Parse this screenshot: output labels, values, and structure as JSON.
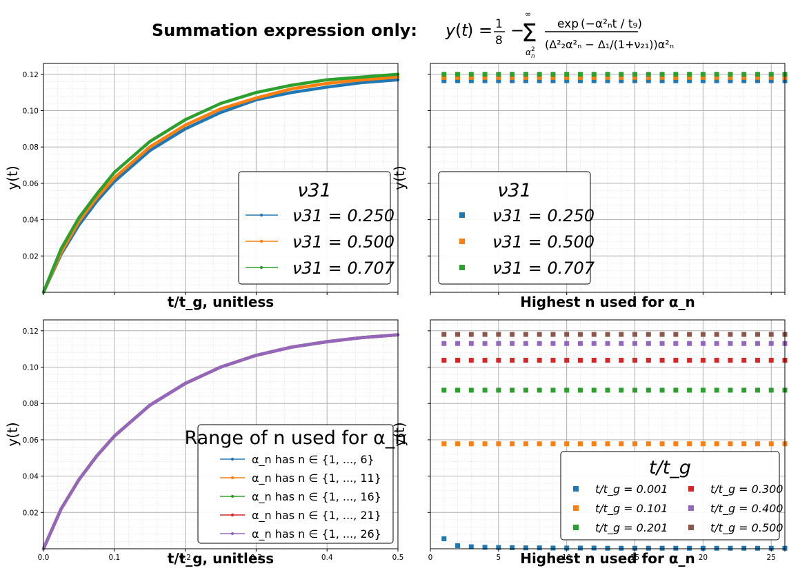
{
  "figure": {
    "title_prefix": "Summation expression only:",
    "formula": "y(t) = 1/8 − Σ exp(−α²ₙt / t_g) / [α²ₙ(Δ²₂α²ₙ − Δ₁/(1+ν₂₁))α²ₙ]"
  },
  "colors": {
    "blue": "#1f77b4",
    "orange": "#ff7f0e",
    "green": "#2ca02c",
    "red": "#d62728",
    "purple": "#9467bd",
    "brown": "#8c564b"
  },
  "chart_data": [
    {
      "id": "top-left",
      "type": "line",
      "xlabel": "t/t_g, unitless",
      "ylabel": "y(t)",
      "xlim": [
        0,
        0.5
      ],
      "ylim": [
        0,
        0.126
      ],
      "show_x_ticklabels": false,
      "yticks": [
        "0.02",
        "0.04",
        "0.06",
        "0.08",
        "0.10",
        "0.12"
      ],
      "legend": {
        "title": "ν31",
        "position": "lower-right"
      },
      "x": [
        0,
        0.025,
        0.05,
        0.075,
        0.1,
        0.15,
        0.2,
        0.25,
        0.3,
        0.35,
        0.4,
        0.45,
        0.5
      ],
      "series": [
        {
          "name": "ν31 = 0.250",
          "color": "blue",
          "values": [
            0,
            0.021,
            0.037,
            0.05,
            0.061,
            0.078,
            0.09,
            0.099,
            0.106,
            0.11,
            0.113,
            0.1155,
            0.117
          ]
        },
        {
          "name": "ν31 = 0.500",
          "color": "orange",
          "values": [
            0,
            0.022,
            0.039,
            0.052,
            0.063,
            0.08,
            0.092,
            0.101,
            0.107,
            0.112,
            0.115,
            0.117,
            0.1185
          ]
        },
        {
          "name": "ν31 = 0.707",
          "color": "green",
          "values": [
            0,
            0.024,
            0.041,
            0.054,
            0.066,
            0.083,
            0.095,
            0.104,
            0.11,
            0.114,
            0.117,
            0.1185,
            0.12
          ]
        }
      ]
    },
    {
      "id": "top-right",
      "type": "scatter",
      "xlabel": "Highest n used for α_n",
      "ylabel": "y(t)",
      "xlim": [
        0,
        26
      ],
      "ylim": [
        0,
        0.126
      ],
      "show_x_ticklabels": false,
      "show_y_ticklabels": false,
      "legend": {
        "title": "ν31",
        "position": "lower-left"
      },
      "x": [
        1,
        2,
        3,
        4,
        5,
        6,
        7,
        8,
        9,
        10,
        11,
        12,
        13,
        14,
        15,
        16,
        17,
        18,
        19,
        20,
        21,
        22,
        23,
        24,
        25,
        26
      ],
      "series": [
        {
          "name": "ν31 = 0.250",
          "color": "blue",
          "constant": 0.1165
        },
        {
          "name": "ν31 = 0.500",
          "color": "orange",
          "constant": 0.1183
        },
        {
          "name": "ν31 = 0.707",
          "color": "green",
          "constant": 0.12
        }
      ]
    },
    {
      "id": "bottom-left",
      "type": "line",
      "xlabel": "t/t_g, unitless",
      "ylabel": "y(t)",
      "xlim": [
        0,
        0.5
      ],
      "ylim": [
        0,
        0.126
      ],
      "xticks": [
        "0.0",
        "0.1",
        "0.2",
        "0.3",
        "0.4",
        "0.5"
      ],
      "yticks": [
        "0.02",
        "0.04",
        "0.06",
        "0.08",
        "0.10",
        "0.12"
      ],
      "legend": {
        "title": "Range of n used for α_n",
        "position": "lower-right"
      },
      "x": [
        0,
        0.025,
        0.05,
        0.075,
        0.1,
        0.15,
        0.2,
        0.25,
        0.3,
        0.35,
        0.4,
        0.45,
        0.5
      ],
      "series": [
        {
          "name": "α_n has n ∈ {1, ..., 6}",
          "color": "blue",
          "values": [
            0,
            0.022,
            0.038,
            0.051,
            0.062,
            0.079,
            0.091,
            0.1,
            0.1065,
            0.111,
            0.114,
            0.1163,
            0.1178
          ]
        },
        {
          "name": "α_n has n ∈ {1, ..., 11}",
          "color": "orange",
          "values": [
            0,
            0.022,
            0.038,
            0.051,
            0.062,
            0.079,
            0.091,
            0.1,
            0.1065,
            0.111,
            0.114,
            0.1163,
            0.1178
          ]
        },
        {
          "name": "α_n has n ∈ {1, ..., 16}",
          "color": "green",
          "values": [
            0,
            0.022,
            0.038,
            0.051,
            0.062,
            0.079,
            0.091,
            0.1,
            0.1065,
            0.111,
            0.114,
            0.1163,
            0.1178
          ]
        },
        {
          "name": "α_n has n ∈ {1, ..., 21}",
          "color": "red",
          "values": [
            0,
            0.022,
            0.038,
            0.051,
            0.062,
            0.079,
            0.091,
            0.1,
            0.1065,
            0.111,
            0.114,
            0.1163,
            0.1178
          ]
        },
        {
          "name": "α_n has n ∈ {1, ..., 26}",
          "color": "purple",
          "values": [
            0,
            0.022,
            0.038,
            0.051,
            0.062,
            0.079,
            0.091,
            0.1,
            0.1065,
            0.111,
            0.114,
            0.1163,
            0.1178
          ]
        }
      ]
    },
    {
      "id": "bottom-right",
      "type": "scatter",
      "xlabel": "Highest n used for α_n",
      "ylabel": "y(t)",
      "xlim": [
        0,
        26
      ],
      "ylim": [
        0,
        0.126
      ],
      "xticks": [
        "0",
        "5",
        "10",
        "15",
        "20",
        "25"
      ],
      "show_y_ticklabels": false,
      "legend": {
        "title": "t/t_g",
        "position": "lower-right",
        "columns": 2
      },
      "x": [
        1,
        2,
        3,
        4,
        5,
        6,
        7,
        8,
        9,
        10,
        11,
        12,
        13,
        14,
        15,
        16,
        17,
        18,
        19,
        20,
        21,
        22,
        23,
        24,
        25,
        26
      ],
      "series": [
        {
          "name": "t/t_g = 0.001",
          "color": "blue",
          "values": [
            0.0055,
            0.0017,
            0.0011,
            0.0008,
            0.0007,
            0.0006,
            0.0005,
            0.0005,
            0.0004,
            0.0004,
            0.0004,
            0.0004,
            0.0003,
            0.0003,
            0.0003,
            0.0003,
            0.0003,
            0.0003,
            0.0003,
            0.0003,
            0.0003,
            0.0003,
            0.0003,
            0.0003,
            0.0003,
            0.0003
          ]
        },
        {
          "name": "t/t_g = 0.101",
          "color": "orange",
          "constant": 0.0578
        },
        {
          "name": "t/t_g = 0.201",
          "color": "green",
          "constant": 0.0873
        },
        {
          "name": "t/t_g = 0.300",
          "color": "red",
          "constant": 0.1038
        },
        {
          "name": "t/t_g = 0.400",
          "color": "purple",
          "constant": 0.113
        },
        {
          "name": "t/t_g = 0.500",
          "color": "brown",
          "constant": 0.118
        }
      ]
    }
  ]
}
